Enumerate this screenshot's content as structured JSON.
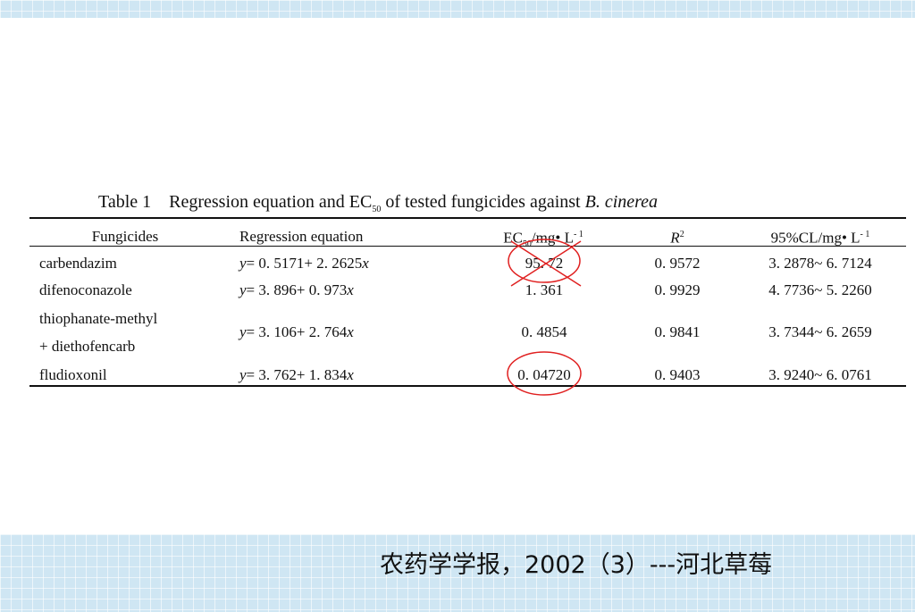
{
  "table": {
    "title": {
      "label": "Table 1",
      "text": "Regression equation and EC",
      "sub": "50",
      "rest": "of tested fungicides against",
      "species": "B. cinerea"
    },
    "header": {
      "fungicides": "Fungicides",
      "equation": "Regression equation",
      "ec50": {
        "base": "EC",
        "sub": "50",
        "unit": "/mg• L",
        "sup": "- 1"
      },
      "r2": {
        "base": "R",
        "sup": "2"
      },
      "cl": {
        "unit": "95%CL/mg• L",
        "sup": "- 1"
      }
    },
    "rows": [
      {
        "name": [
          "carbendazim"
        ],
        "eq": [
          "y",
          "= 0. 5171+ 2. 2625",
          "x"
        ],
        "ec50": "95. 72",
        "r2": "0. 9572",
        "cl": "3. 2878~ 6. 7124"
      },
      {
        "name": [
          "difenoconazole"
        ],
        "eq": [
          "y",
          "= 3. 896+ 0. 973",
          "x"
        ],
        "ec50": "1. 361",
        "r2": "0. 9929",
        "cl": "4. 7736~ 5. 2260"
      },
      {
        "name": [
          "thiophanate-methyl",
          "+ diethofencarb"
        ],
        "eq": [
          "y",
          "= 3. 106+ 2. 764",
          "x"
        ],
        "ec50": "0. 4854",
        "r2": "0. 9841",
        "cl": "3. 7344~ 6. 2659"
      },
      {
        "name": [
          "fludioxonil"
        ],
        "eq": [
          "y",
          "= 3. 762+ 1. 834",
          "x"
        ],
        "ec50": "0. 04720",
        "r2": "0. 9403",
        "cl": "3. 9240~ 6. 0761"
      }
    ]
  },
  "footer": {
    "source": "农药学学报，2002（3）---河北草莓"
  }
}
